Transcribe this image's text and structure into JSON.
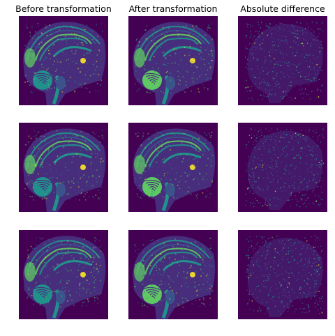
{
  "columns": [
    {
      "title": "Before transformation",
      "kind": "before"
    },
    {
      "title": "After transformation",
      "kind": "after"
    },
    {
      "title": "Absolute difference",
      "kind": "diff"
    }
  ],
  "rows": [
    {
      "slice": "row-1"
    },
    {
      "slice": "row-2"
    },
    {
      "slice": "row-3"
    }
  ],
  "colors": {
    "background": "#440154",
    "dark": "#472d7b",
    "mid_blue": "#3b528b",
    "teal": "#21918c",
    "green": "#5ec962",
    "yellow": "#fde725",
    "page": "#ffffff"
  }
}
